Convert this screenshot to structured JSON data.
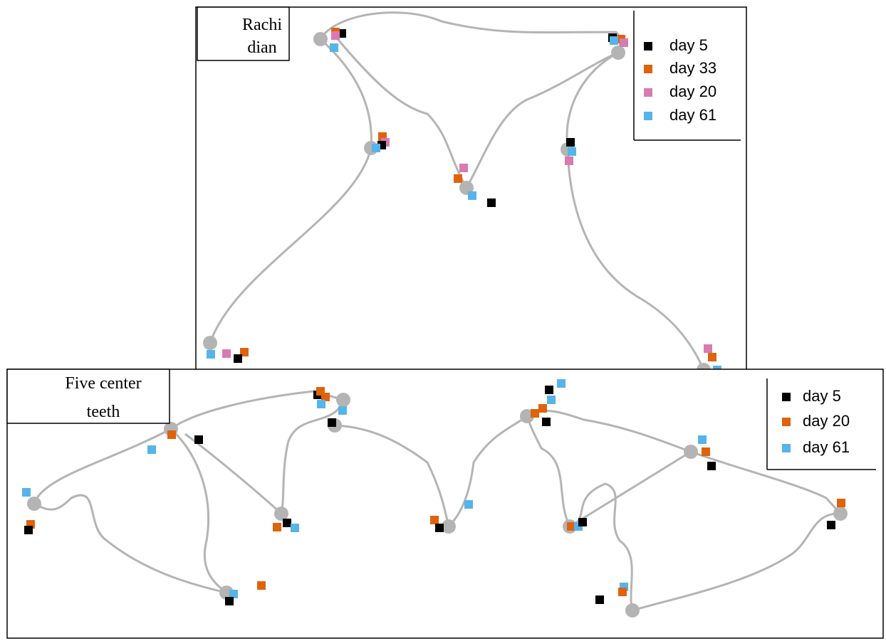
{
  "panels": [
    {
      "label": [
        "Rachi",
        "dian"
      ],
      "legend": [
        {
          "name": "day 5",
          "color": "#000000"
        },
        {
          "name": "day 33",
          "color": "#e0620d"
        },
        {
          "name": "day 20",
          "color": "#d87bb0"
        },
        {
          "name": "day 61",
          "color": "#56b4e9"
        }
      ]
    },
    {
      "label": [
        "Five center",
        "teeth"
      ],
      "legend": [
        {
          "name": "day 5",
          "color": "#000000"
        },
        {
          "name": "day 20",
          "color": "#e0620d"
        },
        {
          "name": "day 61",
          "color": "#56b4e9"
        }
      ]
    }
  ]
}
